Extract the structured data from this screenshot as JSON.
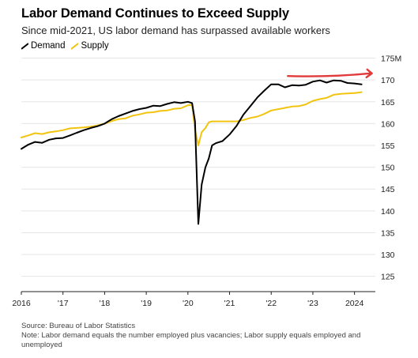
{
  "title": "Labor Demand Continues to Exceed Supply",
  "subtitle": "Since mid-2021, US labor demand has surpassed available workers",
  "legend": {
    "demand": "Demand",
    "supply": "Supply"
  },
  "source": "Source: Bureau of Labor Statistics",
  "note": "Note: Labor demand equals the number employed plus vacancies; Labor supply equals employed and unemployed",
  "colors": {
    "demand": "#000000",
    "supply": "#f2c40f",
    "annotation": "#e03a3a",
    "grid": "#e5e5e5"
  },
  "chart_data": {
    "type": "line",
    "title": "Labor Demand Continues to Exceed Supply",
    "subtitle": "Since mid-2021, US labor demand has surpassed available workers",
    "xlabel": "",
    "ylabel": "",
    "x_tick_labels": [
      "2016",
      "'17",
      "'18",
      "'19",
      "'20",
      "'21",
      "'22",
      "'23",
      "2024"
    ],
    "x_tick_values": [
      2016,
      2017,
      2018,
      2019,
      2020,
      2021,
      2022,
      2023,
      2024
    ],
    "xlim": [
      2016,
      2024.5
    ],
    "y_tick_labels": [
      "175M",
      "170",
      "165",
      "160",
      "155",
      "150",
      "145",
      "140",
      "135",
      "130",
      "125"
    ],
    "y_tick_values": [
      175,
      170,
      165,
      160,
      155,
      150,
      145,
      140,
      135,
      130,
      125
    ],
    "ylim": [
      121.5,
      176
    ],
    "grid": "horizontal",
    "legend_position": "top-left",
    "y_axis_position": "right",
    "series": [
      {
        "name": "Demand",
        "x": [
          2016.0,
          2016.17,
          2016.33,
          2016.5,
          2016.67,
          2016.83,
          2017.0,
          2017.17,
          2017.33,
          2017.5,
          2017.67,
          2017.83,
          2018.0,
          2018.17,
          2018.33,
          2018.5,
          2018.67,
          2018.83,
          2019.0,
          2019.17,
          2019.33,
          2019.5,
          2019.67,
          2019.83,
          2020.0,
          2020.1,
          2020.17,
          2020.25,
          2020.33,
          2020.42,
          2020.5,
          2020.58,
          2020.67,
          2020.83,
          2021.0,
          2021.17,
          2021.33,
          2021.5,
          2021.67,
          2021.83,
          2022.0,
          2022.17,
          2022.33,
          2022.5,
          2022.67,
          2022.83,
          2023.0,
          2023.17,
          2023.33,
          2023.5,
          2023.67,
          2023.83,
          2024.0,
          2024.17
        ],
        "values": [
          154.2,
          155.2,
          155.8,
          155.6,
          156.3,
          156.6,
          156.7,
          157.3,
          157.9,
          158.5,
          159.0,
          159.4,
          160.0,
          161.0,
          161.7,
          162.3,
          162.9,
          163.3,
          163.6,
          164.1,
          164.0,
          164.5,
          164.9,
          164.7,
          165.0,
          164.7,
          160.5,
          137.0,
          146.0,
          150.0,
          152.0,
          155.0,
          155.5,
          156.0,
          157.5,
          159.5,
          162.0,
          164.0,
          166.0,
          167.5,
          169.0,
          169.0,
          168.3,
          168.8,
          168.7,
          168.9,
          169.6,
          169.9,
          169.4,
          169.9,
          169.8,
          169.3,
          169.2,
          169.0
        ]
      },
      {
        "name": "Supply",
        "x": [
          2016.0,
          2016.17,
          2016.33,
          2016.5,
          2016.67,
          2016.83,
          2017.0,
          2017.17,
          2017.33,
          2017.5,
          2017.67,
          2017.83,
          2018.0,
          2018.17,
          2018.33,
          2018.5,
          2018.67,
          2018.83,
          2019.0,
          2019.17,
          2019.33,
          2019.5,
          2019.67,
          2019.83,
          2020.0,
          2020.1,
          2020.17,
          2020.25,
          2020.33,
          2020.42,
          2020.5,
          2020.58,
          2020.67,
          2020.83,
          2021.0,
          2021.17,
          2021.33,
          2021.5,
          2021.67,
          2021.83,
          2022.0,
          2022.17,
          2022.33,
          2022.5,
          2022.67,
          2022.83,
          2023.0,
          2023.17,
          2023.33,
          2023.5,
          2023.67,
          2023.83,
          2024.0,
          2024.17
        ],
        "values": [
          156.8,
          157.3,
          157.8,
          157.6,
          158.0,
          158.2,
          158.5,
          158.9,
          159.0,
          159.1,
          159.3,
          159.6,
          160.0,
          160.6,
          161.0,
          161.2,
          161.8,
          162.1,
          162.5,
          162.6,
          162.9,
          163.0,
          163.4,
          163.5,
          164.2,
          164.3,
          158.5,
          155.0,
          158.0,
          159.0,
          160.3,
          160.5,
          160.5,
          160.5,
          160.5,
          160.5,
          160.8,
          161.3,
          161.6,
          162.2,
          163.0,
          163.3,
          163.6,
          163.9,
          164.0,
          164.4,
          165.2,
          165.6,
          165.9,
          166.6,
          166.8,
          166.9,
          167.0,
          167.2
        ]
      }
    ],
    "annotations": [
      {
        "type": "arrow",
        "description": "hand-drawn red arrow above the demand line",
        "x_start": 2022.4,
        "x_end": 2024.4,
        "y_start": 170.9,
        "y_end": 171.5
      }
    ]
  }
}
